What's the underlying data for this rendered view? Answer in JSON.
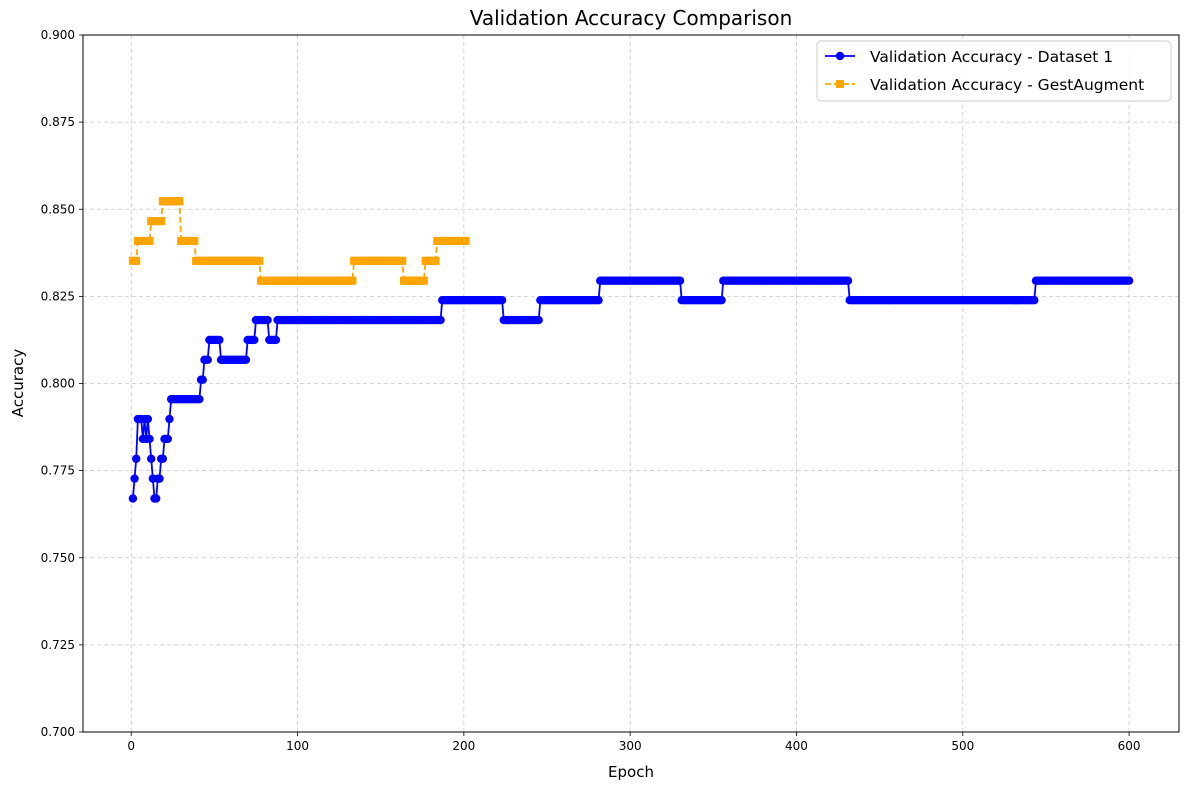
{
  "chart_data": {
    "type": "line",
    "title": "Validation Accuracy Comparison",
    "xlabel": "Epoch",
    "ylabel": "Accuracy",
    "xlim": [
      -29,
      630
    ],
    "ylim": [
      0.7,
      0.9
    ],
    "x_ticks": [
      0,
      100,
      200,
      300,
      400,
      500,
      600
    ],
    "y_ticks": [
      0.7,
      0.725,
      0.75,
      0.775,
      0.8,
      0.825,
      0.85,
      0.875,
      0.9
    ],
    "x_tick_labels": [
      "0",
      "100",
      "200",
      "300",
      "400",
      "500",
      "600"
    ],
    "y_tick_labels": [
      "0.700",
      "0.725",
      "0.750",
      "0.775",
      "0.800",
      "0.825",
      "0.850",
      "0.875",
      "0.900"
    ],
    "grid": true,
    "legend_position": "top-right",
    "series": [
      {
        "name": "Validation Accuracy - Dataset 1",
        "color": "#0000ff",
        "line_style": "solid",
        "marker": "circle",
        "segments": [
          [
            1,
            1,
            0.767
          ],
          [
            2,
            2,
            0.7727
          ],
          [
            3,
            3,
            0.7784
          ],
          [
            4,
            4,
            0.7898
          ],
          [
            5,
            5,
            0.7898
          ],
          [
            6,
            6,
            0.7898
          ],
          [
            7,
            7,
            0.7841
          ],
          [
            8,
            8,
            0.7898
          ],
          [
            9,
            9,
            0.7841
          ],
          [
            10,
            10,
            0.7898
          ],
          [
            11,
            11,
            0.7841
          ],
          [
            12,
            12,
            0.7784
          ],
          [
            13,
            13,
            0.7727
          ],
          [
            14,
            15,
            0.767
          ],
          [
            16,
            17,
            0.7727
          ],
          [
            18,
            19,
            0.7784
          ],
          [
            20,
            22,
            0.7841
          ],
          [
            23,
            23,
            0.7898
          ],
          [
            24,
            41,
            0.7955
          ],
          [
            42,
            43,
            0.8011
          ],
          [
            44,
            46,
            0.8068
          ],
          [
            47,
            53,
            0.8125
          ],
          [
            54,
            69,
            0.8068
          ],
          [
            70,
            74,
            0.8125
          ],
          [
            75,
            82,
            0.8182
          ],
          [
            83,
            87,
            0.8125
          ],
          [
            88,
            186,
            0.8182
          ],
          [
            187,
            223,
            0.8239
          ],
          [
            224,
            245,
            0.8182
          ],
          [
            246,
            281,
            0.8239
          ],
          [
            282,
            330,
            0.8295
          ],
          [
            331,
            355,
            0.8239
          ],
          [
            356,
            431,
            0.8295
          ],
          [
            432,
            543,
            0.8239
          ],
          [
            544,
            600,
            0.8295
          ]
        ]
      },
      {
        "name": "Validation Accuracy - GestAugment",
        "color": "#ffa500",
        "line_style": "dashed",
        "marker": "square",
        "segments": [
          [
            1,
            3,
            0.8352
          ],
          [
            4,
            11,
            0.8409
          ],
          [
            12,
            18,
            0.8466
          ],
          [
            19,
            29,
            0.8523
          ],
          [
            30,
            38,
            0.8409
          ],
          [
            39,
            77,
            0.8352
          ],
          [
            78,
            133,
            0.8295
          ],
          [
            134,
            163,
            0.8352
          ],
          [
            164,
            176,
            0.8295
          ],
          [
            177,
            183,
            0.8352
          ],
          [
            184,
            201,
            0.8409
          ]
        ]
      }
    ]
  }
}
